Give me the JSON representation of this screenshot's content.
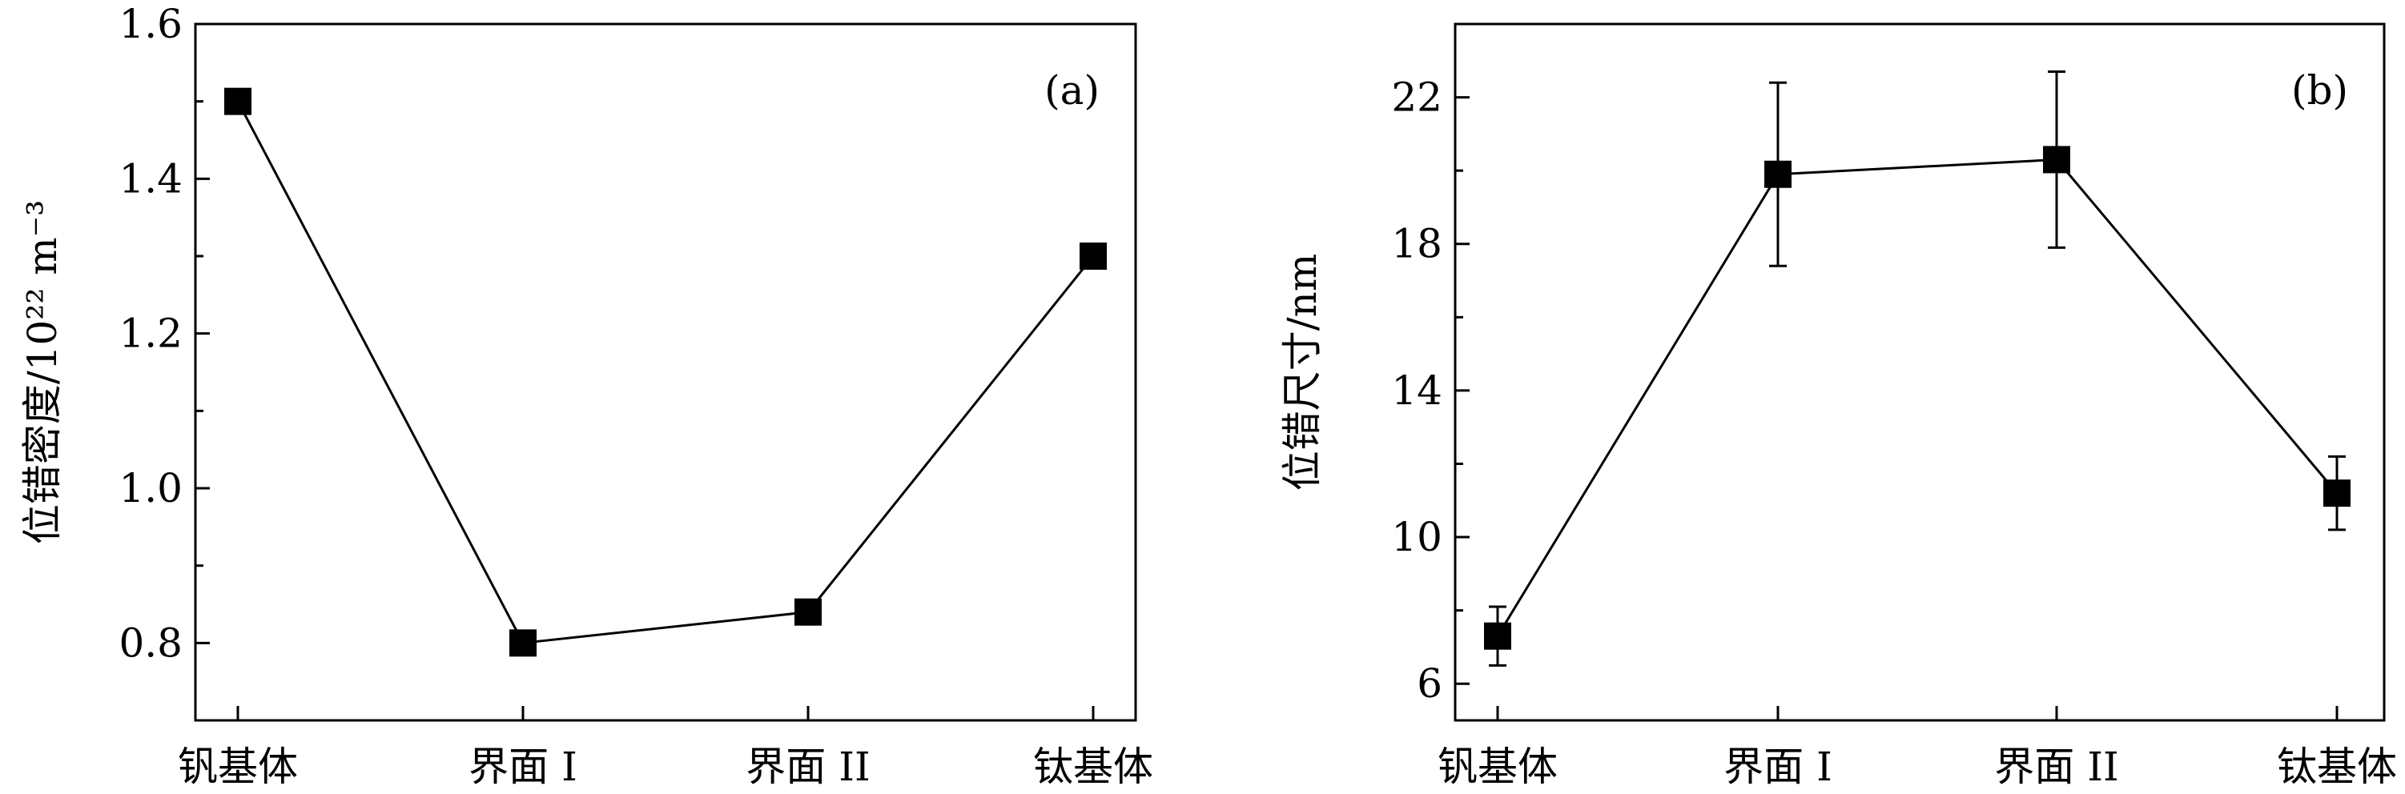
{
  "chart_data": [
    {
      "type": "line",
      "panel_label": "(a)",
      "categories": [
        "钒基体",
        "界面 I",
        "界面 II",
        "钛基体"
      ],
      "series": [
        {
          "values": [
            1.5,
            0.8,
            0.84,
            1.3
          ]
        }
      ],
      "ylabel": "位错密度/10²² m⁻³",
      "ylim": [
        0.7,
        1.6
      ],
      "yticks": [
        0.8,
        1.0,
        1.2,
        1.4,
        1.6
      ],
      "ytick_labels": [
        "0.8",
        "1.0",
        "1.2",
        "1.4",
        "1.6"
      ],
      "yminor_ticks": [
        0.9,
        1.1,
        1.3,
        1.5
      ],
      "grid": false,
      "marker": "square"
    },
    {
      "type": "line",
      "panel_label": "(b)",
      "categories": [
        "钒基体",
        "界面 I",
        "界面 II",
        "钛基体"
      ],
      "series": [
        {
          "values": [
            7.3,
            19.9,
            20.3,
            11.2
          ],
          "error": [
            0.8,
            2.5,
            2.4,
            1.0
          ]
        }
      ],
      "ylabel": "位错尺寸/nm",
      "ylim": [
        5,
        24
      ],
      "yticks": [
        6,
        10,
        14,
        18,
        22
      ],
      "ytick_labels": [
        "6",
        "10",
        "14",
        "18",
        "22"
      ],
      "yminor_ticks": [
        8,
        12,
        16,
        20
      ],
      "grid": false,
      "marker": "square"
    }
  ]
}
